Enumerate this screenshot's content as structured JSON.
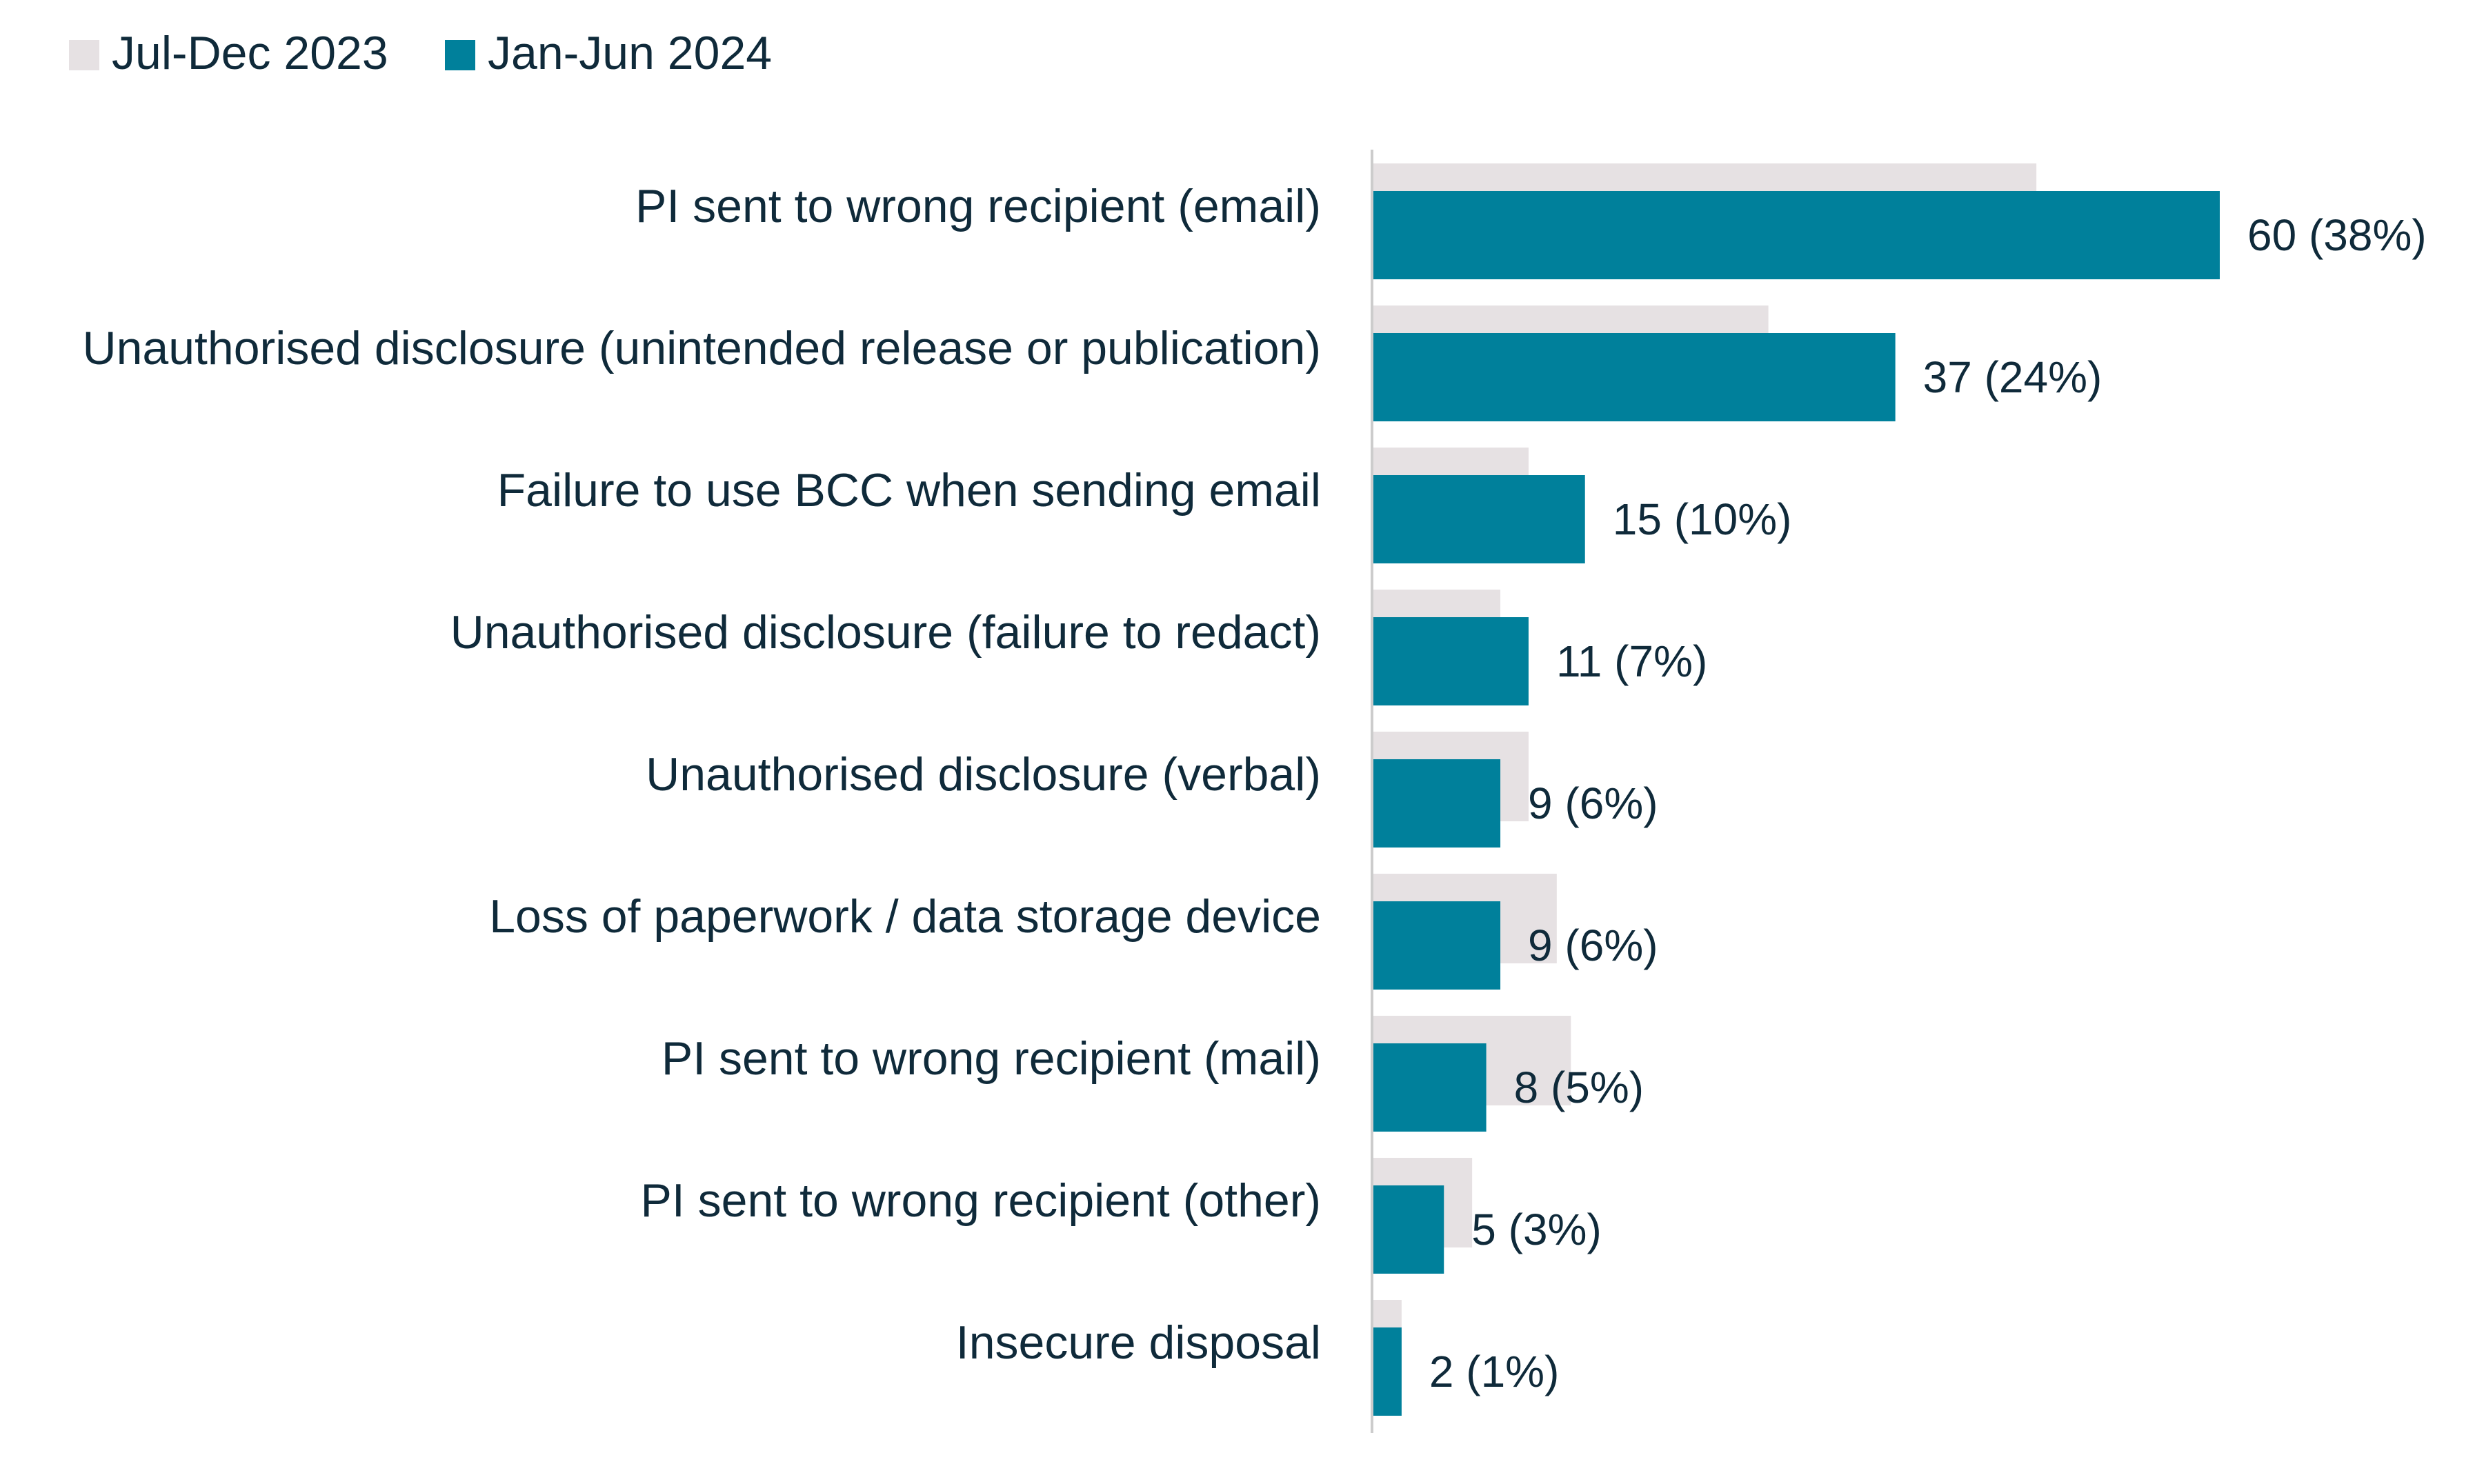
{
  "chart_data": {
    "type": "bar",
    "orientation": "horizontal",
    "categories": [
      "PI sent to wrong recipient (email)",
      "Unauthorised disclosure (unintended release or publication)",
      "Failure to use BCC when sending email",
      "Unauthorised disclosure (failure to redact)",
      "Unauthorised disclosure (verbal)",
      "Loss of paperwork / data storage device",
      "PI sent to wrong recipient (mail)",
      "PI sent to wrong recipient (other)",
      "Insecure disposal"
    ],
    "series": [
      {
        "name": "Jul-Dec 2023",
        "color": "#e6e1e3",
        "values": [
          47,
          28,
          11,
          9,
          11,
          13,
          14,
          7,
          2
        ]
      },
      {
        "name": "Jan-Jun 2024",
        "color": "#00809b",
        "values": [
          60,
          37,
          15,
          11,
          9,
          9,
          8,
          5,
          2
        ],
        "data_labels": [
          "60 (38%)",
          "37 (24%)",
          "15 (10%)",
          "11 (7%)",
          "9 (6%)",
          "9 (6%)",
          "8 (5%)",
          "5 (3%)",
          "2 (1%)"
        ]
      }
    ],
    "xlim": [
      0,
      60
    ],
    "grid": false,
    "legend_position": "top-left",
    "title": "",
    "xlabel": "",
    "ylabel": ""
  },
  "colors": {
    "text": "#0f2a3a",
    "axis": "#cccccc"
  }
}
